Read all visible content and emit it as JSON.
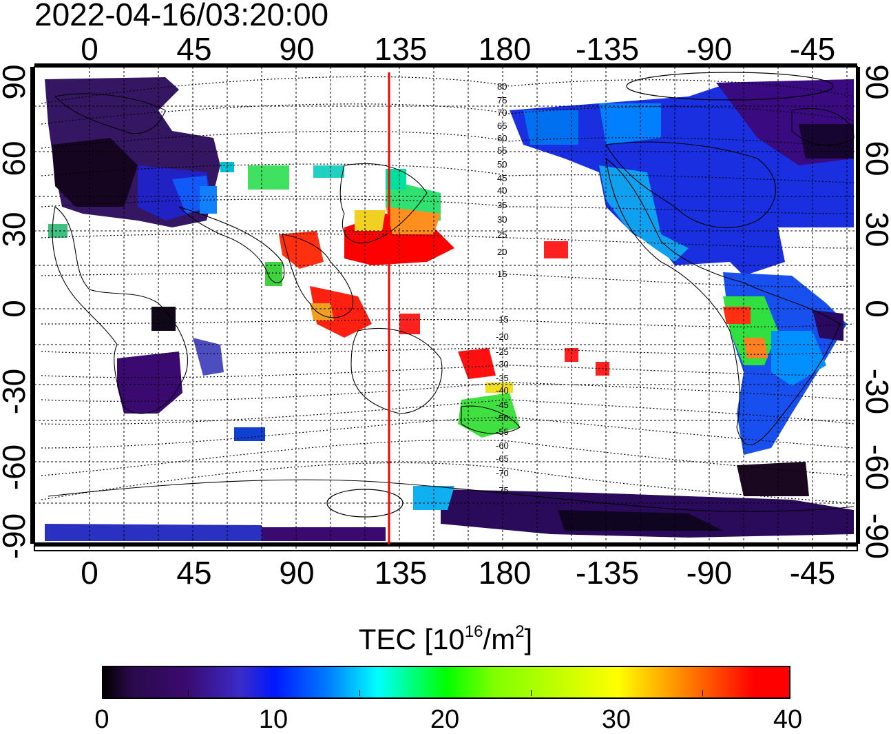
{
  "timestamp": "2022-04-16/03:20:00",
  "map": {
    "top_lon_ticks": [
      "0",
      "45",
      "90",
      "135",
      "180",
      "-135",
      "-90",
      "-45"
    ],
    "bottom_lon_ticks": [
      "0",
      "45",
      "90",
      "135",
      "180",
      "-135",
      "-90",
      "-45"
    ],
    "left_lat_ticks": [
      "90",
      "60",
      "30",
      "0",
      "-30",
      "-60",
      "-90"
    ],
    "right_lat_ticks": [
      "90",
      "60",
      "30",
      "0",
      "-30",
      "-60",
      "-90"
    ],
    "contour_labels_north": [
      "80",
      "75",
      "70",
      "65",
      "60",
      "55",
      "50",
      "45",
      "40",
      "35",
      "30",
      "25",
      "20",
      "15"
    ],
    "contour_labels_south": [
      "-15",
      "-20",
      "-25",
      "-30",
      "-35",
      "-40",
      "-45",
      "-50",
      "-55",
      "-60",
      "-65",
      "-70",
      "-75"
    ],
    "meridian_line_color": "#ff0000"
  },
  "colorbar": {
    "title_prefix": "TEC  [10",
    "title_exp1": "16",
    "title_mid": "/m",
    "title_exp2": "2",
    "title_suffix": "]",
    "ticks": [
      "0",
      "10",
      "20",
      "30",
      "40"
    ],
    "range": [
      0,
      40
    ],
    "colors": [
      "#000000",
      "#3a0a6e",
      "#0018ff",
      "#00ffff",
      "#00ff00",
      "#ffff00",
      "#ff0000"
    ]
  }
}
